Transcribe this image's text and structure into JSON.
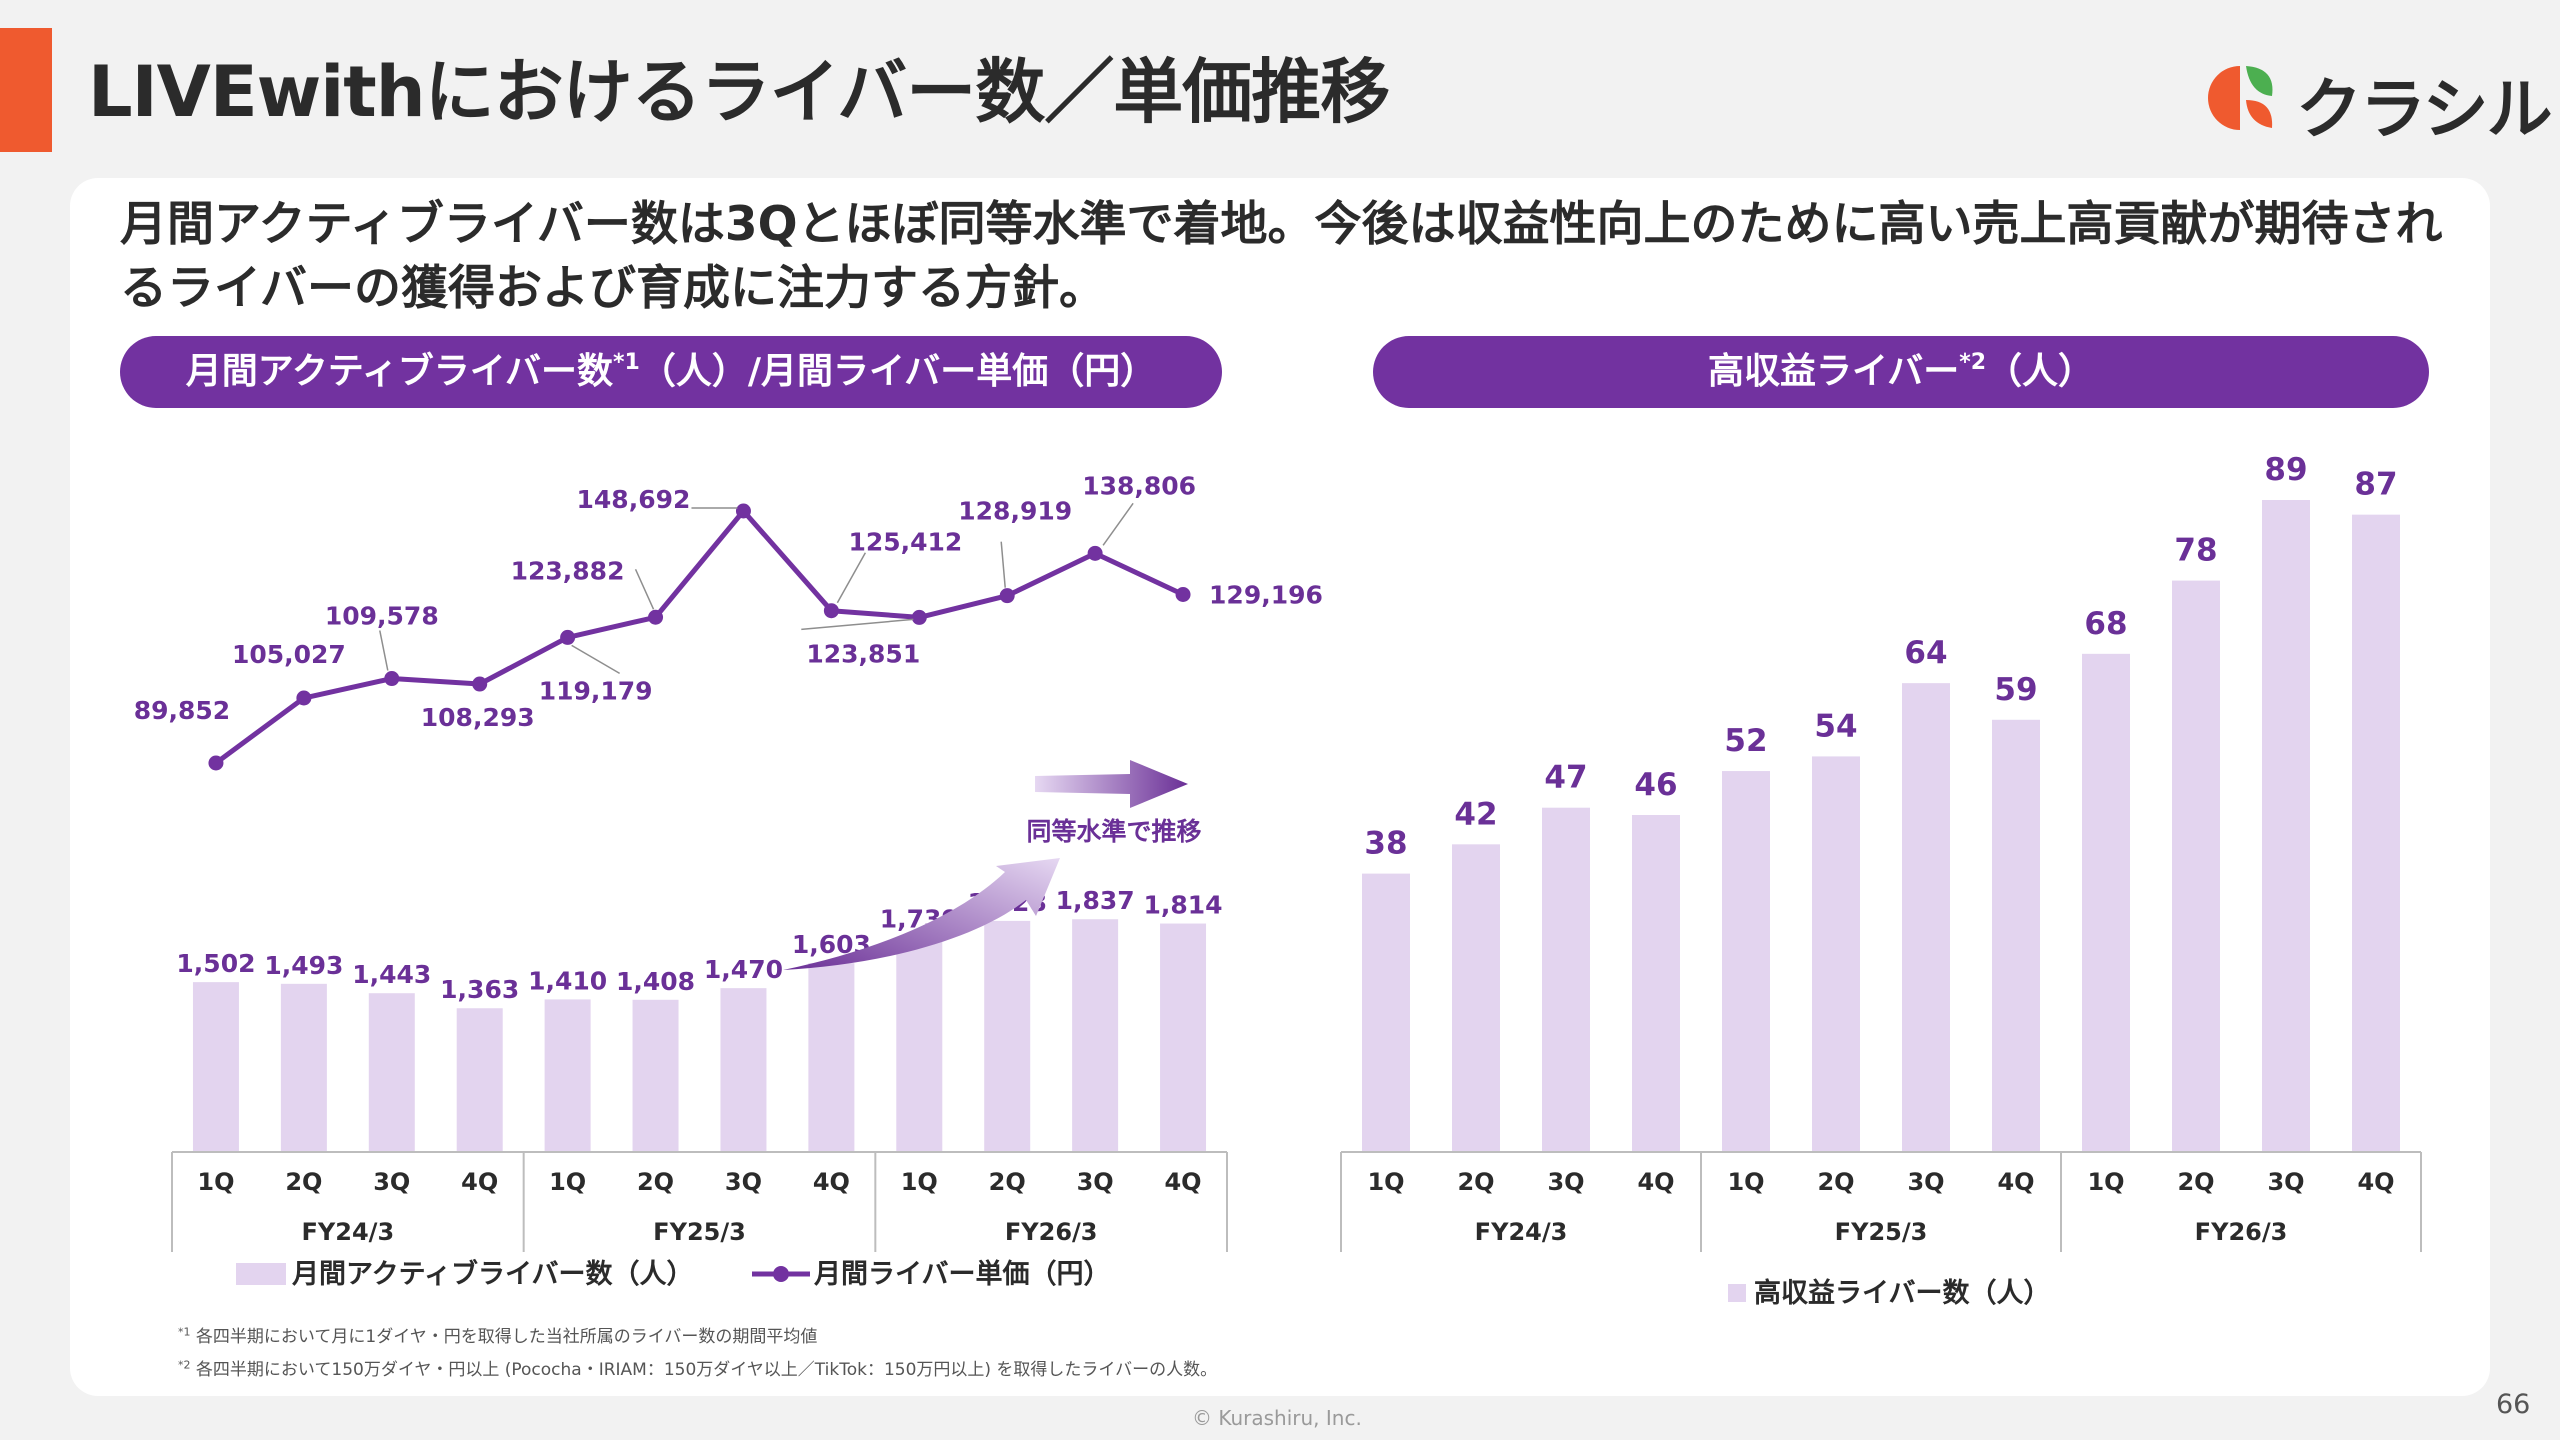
{
  "header": {
    "title": "LIVEwithにおけるライバー数／単価推移",
    "logo_text": "クラシル",
    "logo_colors": [
      "#ef5a2f",
      "#4caf50"
    ]
  },
  "headline": "月間アクティブライバー数は3Qとほぼ同等水準で着地。今後は収益性向上のために高い売上高貢献が期待されるライバーの獲得および育成に注力する方針。",
  "left_panel": {
    "pill": {
      "main": "月間アクティブライバー数",
      "sup": "*1",
      "rest": "（人）/月間ライバー単価（円）"
    },
    "annotation": "同等水準で推移",
    "legend_bar": "月間アクティブライバー数（人）",
    "legend_line": "月間ライバー単価（円）"
  },
  "right_panel": {
    "pill": {
      "main": "高収益ライバー",
      "sup": "*2",
      "rest": "（人）"
    },
    "legend_bar": "高収益ライバー数（人）"
  },
  "footnotes": {
    "fn1_mark": "*1",
    "fn1": "各四半期において月に1ダイヤ・円を取得した当社所属のライバー数の期間平均値",
    "fn2_mark": "*2",
    "fn2": "各四半期において150万ダイヤ・円以上 (Pococha・IRIAM：150万ダイヤ以上／TikTok：150万円以上) を取得したライバーの人数。"
  },
  "copyright": "© Kurashiru, Inc.",
  "page_number": "66",
  "colors": {
    "bar": "#e3d4ef",
    "line": "#7232a0",
    "label": "#6a3097",
    "pill": "#7232a0",
    "accent": "#ef5a2f"
  },
  "chart_data": [
    {
      "type": "bar+line",
      "categories": [
        "1Q",
        "2Q",
        "3Q",
        "4Q",
        "1Q",
        "2Q",
        "3Q",
        "4Q",
        "1Q",
        "2Q",
        "3Q",
        "4Q"
      ],
      "groups": [
        {
          "label": "FY24/3",
          "count": 4
        },
        {
          "label": "FY25/3",
          "count": 4
        },
        {
          "label": "FY26/3",
          "count": 4
        }
      ],
      "series": [
        {
          "name": "月間アクティブライバー数（人）",
          "type": "bar",
          "values": [
            1502,
            1493,
            1443,
            1363,
            1410,
            1408,
            1470,
            1603,
            1739,
            1828,
            1837,
            1814
          ],
          "labels": [
            "1,502",
            "1,493",
            "1,443",
            "1,363",
            "1,410",
            "1,408",
            "1,470",
            "1,603",
            "1,739",
            "1,828",
            "1,837",
            "1,814"
          ]
        },
        {
          "name": "月間ライバー単価（円）",
          "type": "line",
          "values": [
            89852,
            105027,
            109578,
            108293,
            119179,
            123882,
            148692,
            125412,
            123851,
            128919,
            138806,
            129196
          ],
          "labels": [
            "89,852",
            "105,027",
            "109,578",
            "108,293",
            "119,179",
            "123,882",
            "148,692",
            "125,412",
            "123,851",
            "128,919",
            "138,806",
            "129,196"
          ]
        }
      ],
      "bar_ylim": [
        0,
        2000
      ],
      "line_ylim": [
        40000,
        150000
      ],
      "grid": false,
      "legend": "bottom"
    },
    {
      "type": "bar",
      "categories": [
        "1Q",
        "2Q",
        "3Q",
        "4Q",
        "1Q",
        "2Q",
        "3Q",
        "4Q",
        "1Q",
        "2Q",
        "3Q",
        "4Q"
      ],
      "groups": [
        {
          "label": "FY24/3",
          "count": 4
        },
        {
          "label": "FY25/3",
          "count": 4
        },
        {
          "label": "FY26/3",
          "count": 4
        }
      ],
      "series": [
        {
          "name": "高収益ライバー数（人）",
          "values": [
            38,
            42,
            47,
            46,
            52,
            54,
            64,
            59,
            68,
            78,
            89,
            87
          ]
        }
      ],
      "ylim": [
        0,
        91
      ],
      "grid": false,
      "legend": "bottom"
    }
  ]
}
